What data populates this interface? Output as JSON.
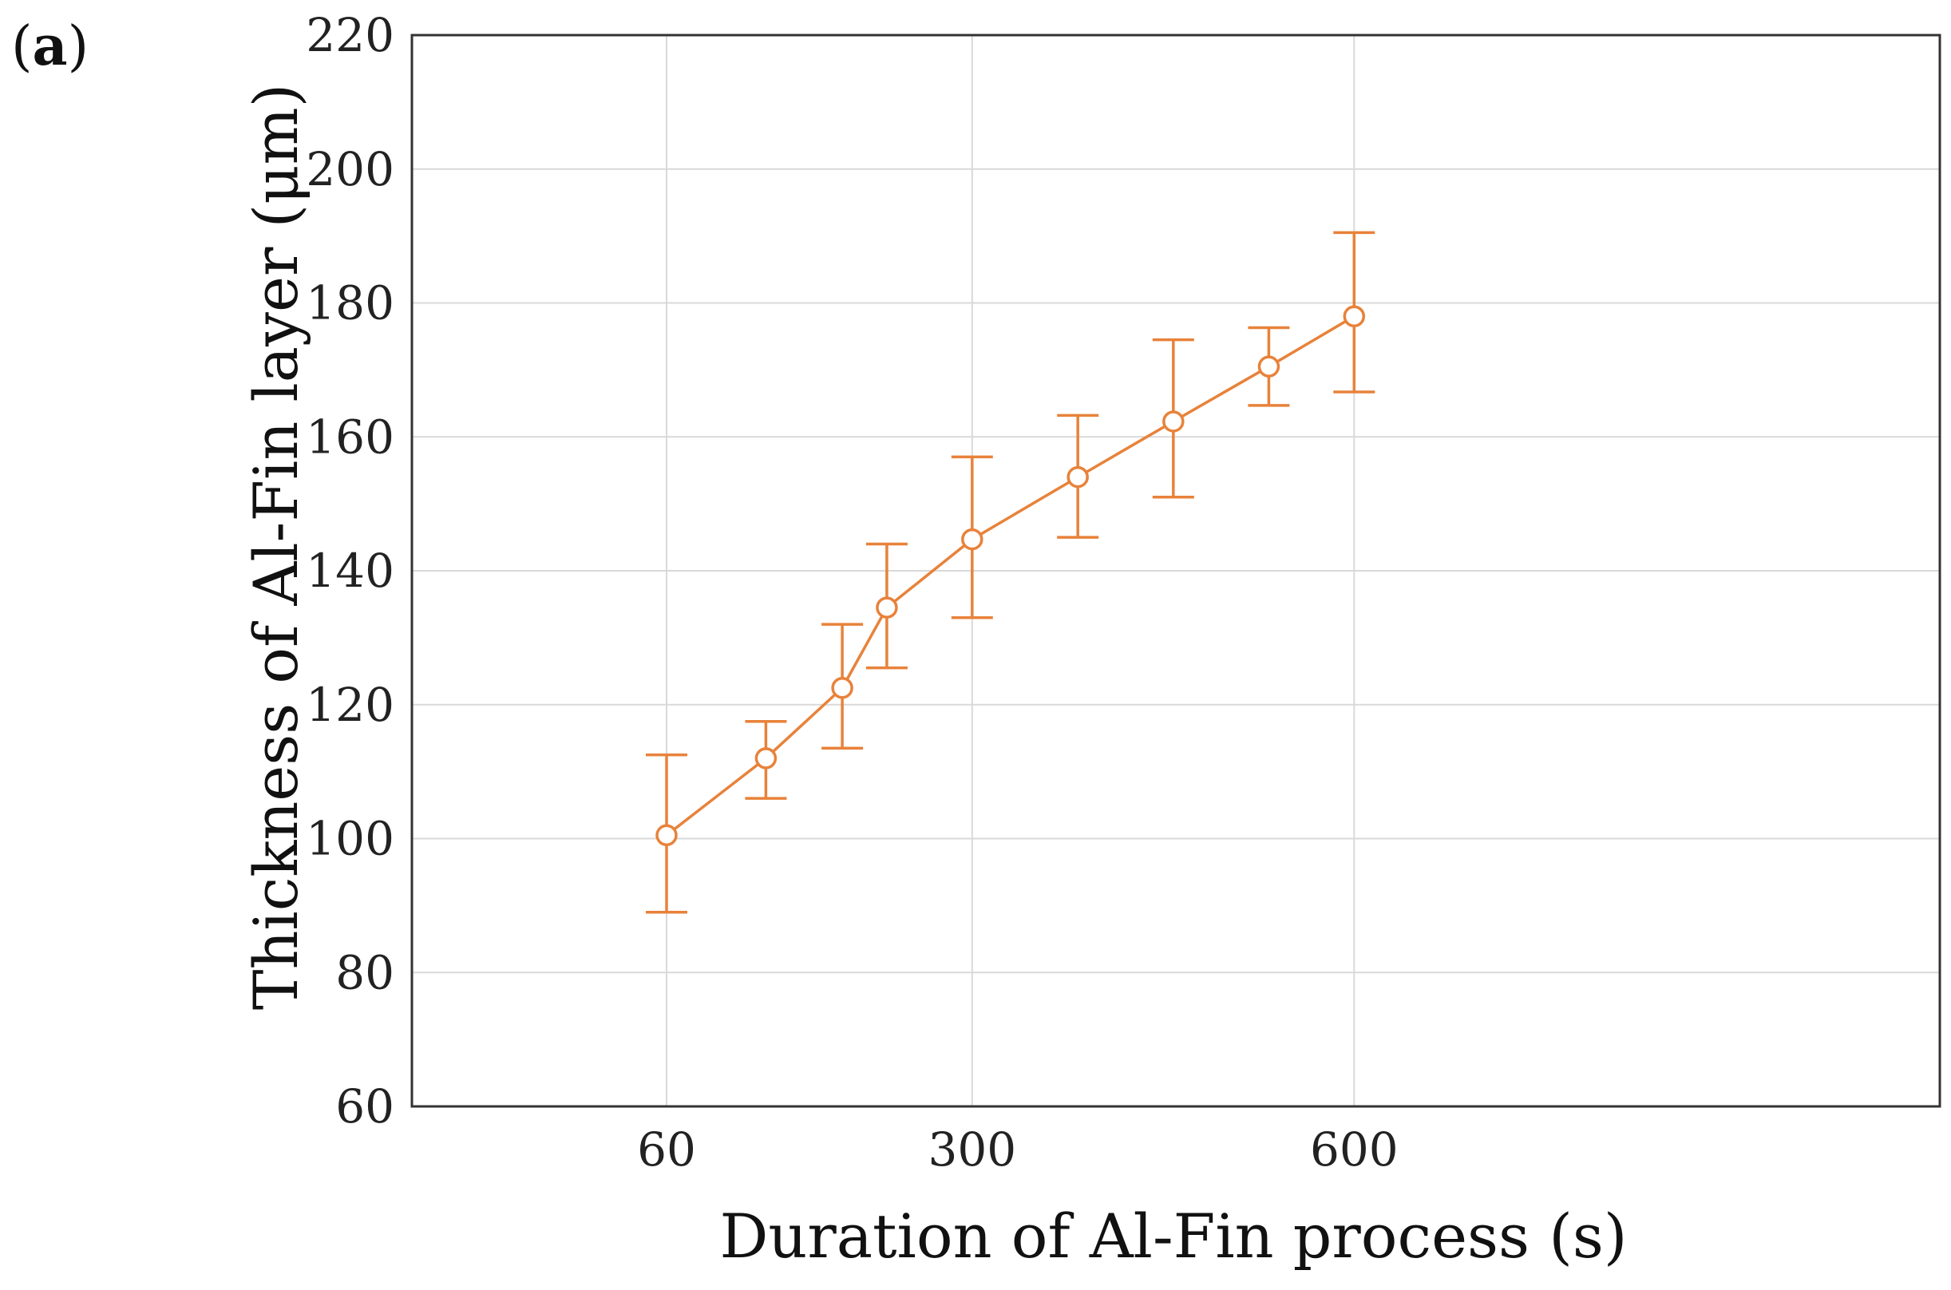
{
  "panel": {
    "open": "(",
    "letter": "a",
    "close": ")"
  },
  "chart_data": {
    "type": "line",
    "xlabel": "Duration of Al-Fin process (s)",
    "ylabel": "Thickness of Al-Fin layer (μm)",
    "ylim": [
      60,
      220
    ],
    "yticks": [
      60,
      80,
      100,
      120,
      140,
      160,
      180,
      200,
      220
    ],
    "xlim": [
      -140,
      1060
    ],
    "xticks": [
      60,
      300,
      600
    ],
    "grid": true,
    "error_bars": true,
    "series": [
      {
        "color": "#e8823a",
        "marker": "open-circle",
        "points": [
          {
            "x": 60,
            "y": 100.5,
            "err_low": 89,
            "err_high": 112.5
          },
          {
            "x": 138,
            "y": 112,
            "err_low": 106,
            "err_high": 117.5
          },
          {
            "x": 198,
            "y": 122.5,
            "err_low": 113.5,
            "err_high": 132
          },
          {
            "x": 233,
            "y": 134.5,
            "err_low": 125.5,
            "err_high": 144
          },
          {
            "x": 300,
            "y": 144.7,
            "err_low": 133,
            "err_high": 157
          },
          {
            "x": 383,
            "y": 154,
            "err_low": 145,
            "err_high": 163.2
          },
          {
            "x": 458,
            "y": 162.3,
            "err_low": 151,
            "err_high": 174.5
          },
          {
            "x": 533,
            "y": 170.5,
            "err_low": 164.7,
            "err_high": 176.3
          },
          {
            "x": 600,
            "y": 178,
            "err_low": 166.7,
            "err_high": 190.5
          }
        ]
      }
    ]
  }
}
